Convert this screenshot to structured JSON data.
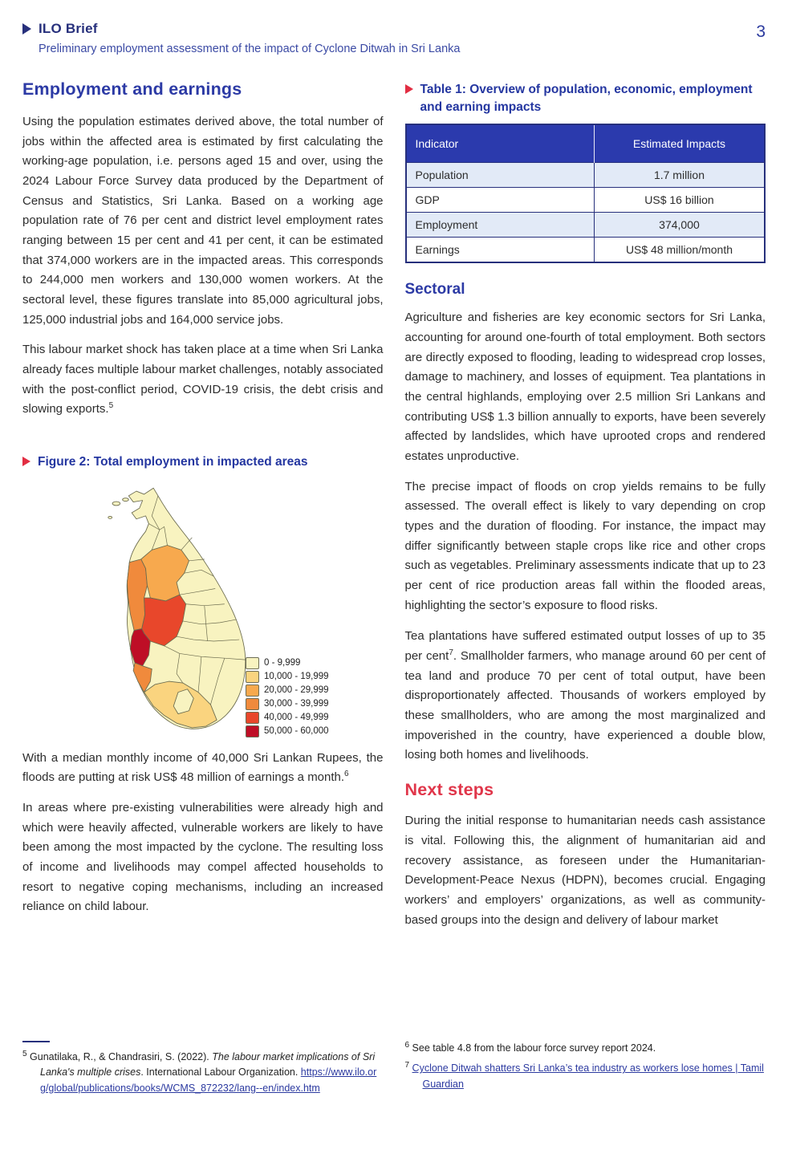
{
  "page": {
    "number": "3"
  },
  "header": {
    "brand": "ILO Brief",
    "subtitle": "Preliminary employment assessment of the impact of Cyclone Ditwah in Sri Lanka"
  },
  "left": {
    "section_title": "Employment and earnings",
    "para1": "Using the population estimates derived above, the total number of jobs within the affected area is estimated by first calculating the working-age population, i.e. persons aged 15 and over, using the 2024 Labour Force Survey data produced by the Department of Census and Statistics, Sri Lanka. Based on a working age population rate of 76 per cent and district level employment rates ranging between 15 per cent and 41 per cent, it can be estimated that 374,000 workers are in the impacted areas. This corresponds to 244,000 men workers and 130,000 women workers. At the sectoral level, these figures translate into 85,000 agricultural jobs, 125,000 industrial jobs and 164,000 service jobs.",
    "para2_main": "This labour market shock has taken place at a time when Sri Lanka already faces multiple labour market challenges, notably associated with the post-conflict period, COVID-19 crisis, the debt crisis and slowing exports.",
    "para2_ref": "5",
    "figure": {
      "caption": "Figure 2: Total employment in impacted areas",
      "legend": [
        {
          "label": "0 - 9,999",
          "color": "#f8f3c0"
        },
        {
          "label": "10,000 - 19,999",
          "color": "#fad47f"
        },
        {
          "label": "20,000 - 29,999",
          "color": "#f7a94e"
        },
        {
          "label": "30,000 - 39,999",
          "color": "#f08a3c"
        },
        {
          "label": "40,000 - 49,999",
          "color": "#e8472b"
        },
        {
          "label": "50,000 - 60,000",
          "color": "#be0e26"
        }
      ]
    },
    "para3_main": "With a median monthly income of 40,000 Sri Lankan Rupees, the floods are putting at risk US$ 48 million of earnings a month.",
    "para3_ref": "6",
    "para4": "In areas where pre-existing vulnerabilities were already high and which were heavily affected, vulnerable workers are likely to have been among the most impacted by the cyclone. The resulting loss of income and livelihoods may compel affected households to resort to negative coping mechanisms, including an increased reliance on child labour."
  },
  "table": {
    "caption": "Table 1: Overview of population, economic, employment and earning impacts",
    "headers": [
      "Indicator",
      "Estimated Impacts"
    ],
    "rows": [
      [
        "Population",
        "1.7 million"
      ],
      [
        "GDP",
        "US$ 16 billion"
      ],
      [
        "Employment",
        "374,000"
      ],
      [
        "Earnings",
        "US$ 48 million/month"
      ]
    ]
  },
  "right": {
    "sectoral_title": "Sectoral",
    "sectoral_para1": "Agriculture and fisheries are key economic sectors for Sri Lanka, accounting for around one-fourth of total employment. Both sectors are directly exposed to flooding, leading to widespread crop losses, damage to machinery, and losses of equipment. Tea plantations in the central highlands, employing over 2.5 million Sri Lankans and contributing US$ 1.3 billion annually to exports, have been severely affected by landslides, which have uprooted crops and rendered estates unproductive.",
    "sectoral_para2": "The precise impact of floods on crop yields remains to be fully assessed. The overall effect is likely to vary depending on crop types and the duration of flooding. For instance, the impact may differ significantly between staple crops like rice and other crops such as vegetables. Preliminary assessments indicate that up to 23 per cent of rice production areas fall within the flooded areas, highlighting the sector’s exposure to flood risks.",
    "sectoral_para3_a": "Tea plantations have suffered estimated output losses of up to 35 per cent",
    "sectoral_para3_ref": "7",
    "sectoral_para3_b": ". Smallholder farmers, who manage around 60 per cent of tea land and produce 70 per cent of total output, have been disproportionately affected. Thousands of workers employed by these smallholders, who are among the most marginalized and impoverished in the country, have experienced a double blow, losing both homes and livelihoods.",
    "next_steps_title": "Next steps",
    "next_steps_para": "During the initial response to humanitarian needs cash assistance is vital. Following this, the alignment of humanitarian aid and recovery assistance, as foreseen under the Humanitarian-Development-Peace Nexus (HDPN), becomes crucial. Engaging workers’ and employers’ organizations, as well as community-based groups into the design and delivery of labour market"
  },
  "footnotes": {
    "fn5_ref": "5",
    "fn5_pre": "Gunatilaka, R., & Chandrasiri, S. (2022). ",
    "fn5_italic": "The labour market implications of Sri Lanka's multiple crises",
    "fn5_post": ". International Labour Organization. ",
    "fn5_link": "https://www.ilo.org/global/publications/books/WCMS_872232/lang--en/index.htm",
    "fn6_ref": "6",
    "fn6_text": "See table 4.8 from the labour force survey report 2024.",
    "fn7_ref": "7",
    "fn7_link": "Cyclone Ditwah shatters Sri Lanka’s tea industry as workers lose homes | Tamil Guardian"
  },
  "colors": {
    "navy": "#27307c",
    "heading_blue": "#2c3aa5",
    "caption_blue": "#2436a0",
    "red_accent": "#e22d42",
    "next_steps_red": "#e0364a",
    "table_header_bg": "#2b3aad",
    "table_row_alt": "#e2eaf7",
    "map_border": "#6b6b4e"
  }
}
